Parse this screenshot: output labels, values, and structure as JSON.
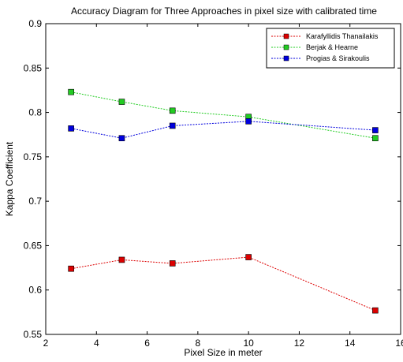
{
  "chart_data": {
    "type": "line",
    "title": "Accuracy Diagram for Three Approaches in pixel size with calibrated time",
    "xlabel": "Pixel Size in meter",
    "ylabel": "Kappa Coefficient",
    "xlim": [
      2,
      16
    ],
    "ylim": [
      0.55,
      0.9
    ],
    "xticks": [
      2,
      4,
      6,
      8,
      10,
      12,
      14,
      16
    ],
    "yticks": [
      0.55,
      0.6,
      0.65,
      0.7,
      0.75,
      0.8,
      0.85,
      0.9
    ],
    "xtick_labels": [
      "2",
      "4",
      "6",
      "8",
      "10",
      "12",
      "14",
      "16"
    ],
    "ytick_labels": [
      "0.55",
      "0.6",
      "0.65",
      "0.7",
      "0.75",
      "0.8",
      "0.85",
      "0.9"
    ],
    "x": [
      3,
      5,
      7,
      10,
      15
    ],
    "grid": false,
    "legend_position": "top-right",
    "series": [
      {
        "name": "Karafyllidis  Thanailakis",
        "color": "#dd0000",
        "values": [
          0.624,
          0.634,
          0.63,
          0.637,
          0.577
        ]
      },
      {
        "name": "Berjak & Hearne",
        "color": "#22cc22",
        "values": [
          0.823,
          0.812,
          0.802,
          0.795,
          0.771
        ]
      },
      {
        "name": "Progias & Sirakoulis",
        "color": "#0000dd",
        "values": [
          0.782,
          0.771,
          0.785,
          0.79,
          0.78
        ]
      }
    ]
  }
}
